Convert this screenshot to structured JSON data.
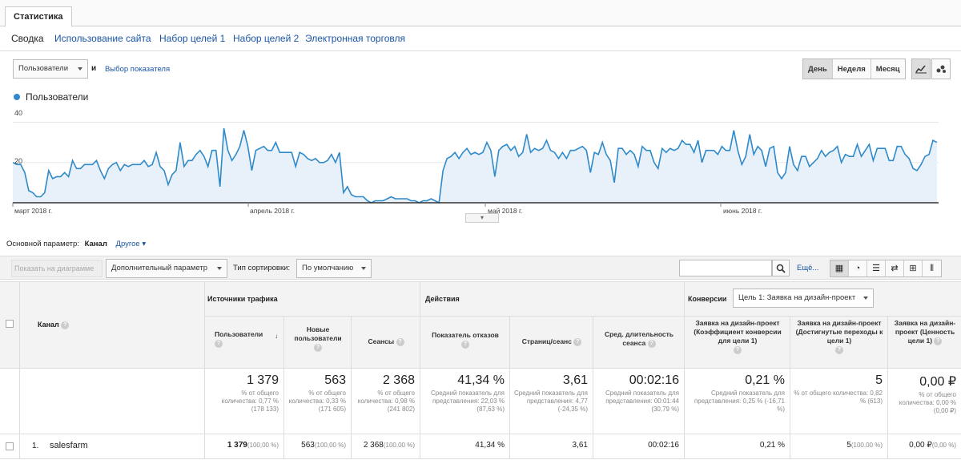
{
  "tabs": {
    "active": "Статистика"
  },
  "subnav": {
    "items": [
      "Сводка",
      "Использование сайта",
      "Набор целей 1",
      "Набор целей 2",
      "Электронная торговля"
    ]
  },
  "chart_controls": {
    "metric_select": "Пользователи",
    "and_label": "и",
    "choose_metric": "Выбор показателя",
    "periods": [
      "День",
      "Неделя",
      "Месяц"
    ]
  },
  "chart_data": {
    "type": "area",
    "legend": [
      "Пользователи"
    ],
    "yticks": [
      "40",
      "20"
    ],
    "ylim": [
      0,
      45
    ],
    "xlabels": [
      "март 2018 г.",
      "апрель 2018 г.",
      "май 2018 г.",
      "июнь 2018 г."
    ],
    "series": [
      {
        "name": "Пользователи",
        "values": [
          20,
          19,
          19,
          15,
          6,
          5,
          3,
          3,
          5,
          16,
          12,
          13,
          13,
          15,
          13,
          21,
          17,
          17,
          19,
          19,
          19,
          21,
          16,
          12,
          17,
          19,
          20,
          16,
          19,
          18,
          19,
          19,
          19,
          21,
          18,
          19,
          25,
          18,
          16,
          9,
          14,
          16,
          30,
          18,
          21,
          21,
          24,
          26,
          23,
          18,
          26,
          26,
          8,
          37,
          26,
          21,
          24,
          28,
          36,
          28,
          16,
          26,
          27,
          28,
          26,
          26,
          30,
          25,
          25,
          25,
          25,
          18,
          25,
          24,
          22,
          21,
          22,
          20,
          20,
          21,
          24,
          20,
          25,
          5,
          8,
          4,
          3,
          3,
          3,
          1,
          0,
          1,
          1,
          1,
          2,
          3,
          2,
          2,
          2,
          2,
          1,
          1,
          0,
          1,
          1,
          2,
          1,
          0,
          16,
          22,
          23,
          25,
          22,
          25,
          27,
          24,
          25,
          24,
          25,
          30,
          26,
          13,
          26,
          28,
          29,
          26,
          28,
          23,
          25,
          34,
          25,
          27,
          26,
          27,
          31,
          26,
          25,
          22,
          25,
          22,
          26,
          26,
          27,
          28,
          26,
          15,
          25,
          24,
          30,
          24,
          21,
          10,
          27,
          27,
          24,
          26,
          24,
          18,
          28,
          26,
          26,
          20,
          17,
          27,
          25,
          27,
          26,
          27,
          31,
          29,
          29,
          25,
          31,
          20,
          26,
          26,
          26,
          24,
          28,
          26,
          26,
          36,
          26,
          19,
          23,
          34,
          24,
          28,
          26,
          18,
          27,
          28,
          15,
          12,
          15,
          28,
          19,
          16,
          23,
          23,
          18,
          20,
          22,
          26,
          23,
          25,
          26,
          28,
          20,
          24,
          23,
          23,
          29,
          23,
          26,
          29,
          21,
          27,
          27,
          27,
          21,
          21,
          28,
          28,
          24,
          22,
          17,
          16,
          19,
          23,
          24,
          31,
          30
        ]
      }
    ]
  },
  "dimension_bar": {
    "label": "Основной параметр:",
    "current": "Канал",
    "other": "Другое"
  },
  "toolbar": {
    "plot_rows": "Показать на диаграмме",
    "secondary_dim": "Дополнительный параметр",
    "sort_label": "Тип сортировки:",
    "sort_value": "По умолчанию",
    "search_placeholder": "",
    "more": "Ещё..."
  },
  "table": {
    "col_channel": "Канал",
    "group_traffic": "Источники трафика",
    "group_actions": "Действия",
    "group_conv": "Конверсии",
    "conv_select": "Цель 1: Заявка на дизайн-проект",
    "headers": [
      "Пользователи",
      "Новые пользователи",
      "Сеансы",
      "Показатель отказов",
      "Страниц/сеанс",
      "Сред. длительность сеанса",
      "Заявка на дизайн-проект (Коэффициент конверсии для цели 1)",
      "Заявка на дизайн-проект (Достигнутые переходы к цели 1)",
      "Заявка на дизайн-проект (Ценность цели 1)"
    ],
    "totals": [
      {
        "value": "1 379",
        "sub": "% от общего количества: 0,77 % (178 133)"
      },
      {
        "value": "563",
        "sub": "% от общего количества: 0,33 % (171 605)"
      },
      {
        "value": "2 368",
        "sub": "% от общего количества: 0,98 % (241 802)"
      },
      {
        "value": "41,34 %",
        "sub": "Средний показатель для представления: 22,03 % (87,63 %)"
      },
      {
        "value": "3,61",
        "sub": "Средний показатель для представления: 4,77 (-24,35 %)"
      },
      {
        "value": "00:02:16",
        "sub": "Средний показатель для представления: 00:01:44 (30,79 %)"
      },
      {
        "value": "0,21 %",
        "sub": "Средний показатель для представления: 0,25 % (-16,71 %)"
      },
      {
        "value": "5",
        "sub": "% от общего количества: 0,82 % (613)"
      },
      {
        "value": "0,00 ₽",
        "sub": "% от общего количества: 0,00 % (0,00 ₽)"
      }
    ],
    "rows": [
      {
        "num": "1.",
        "channel": "salesfarm",
        "cells": [
          {
            "v": "1 379",
            "p": "(100,00 %)"
          },
          {
            "v": "563",
            "p": "(100,00 %)"
          },
          {
            "v": "2 368",
            "p": "(100,00 %)"
          },
          {
            "v": "41,34 %",
            "p": ""
          },
          {
            "v": "3,61",
            "p": ""
          },
          {
            "v": "00:02:16",
            "p": ""
          },
          {
            "v": "0,21 %",
            "p": ""
          },
          {
            "v": "5",
            "p": "(100,00 %)"
          },
          {
            "v": "0,00 ₽",
            "p": "(0,00 %)"
          }
        ]
      }
    ]
  },
  "colors": {
    "accent": "#1a55a5",
    "series": "#2f8ac9",
    "fill": "#e8f1f9"
  }
}
